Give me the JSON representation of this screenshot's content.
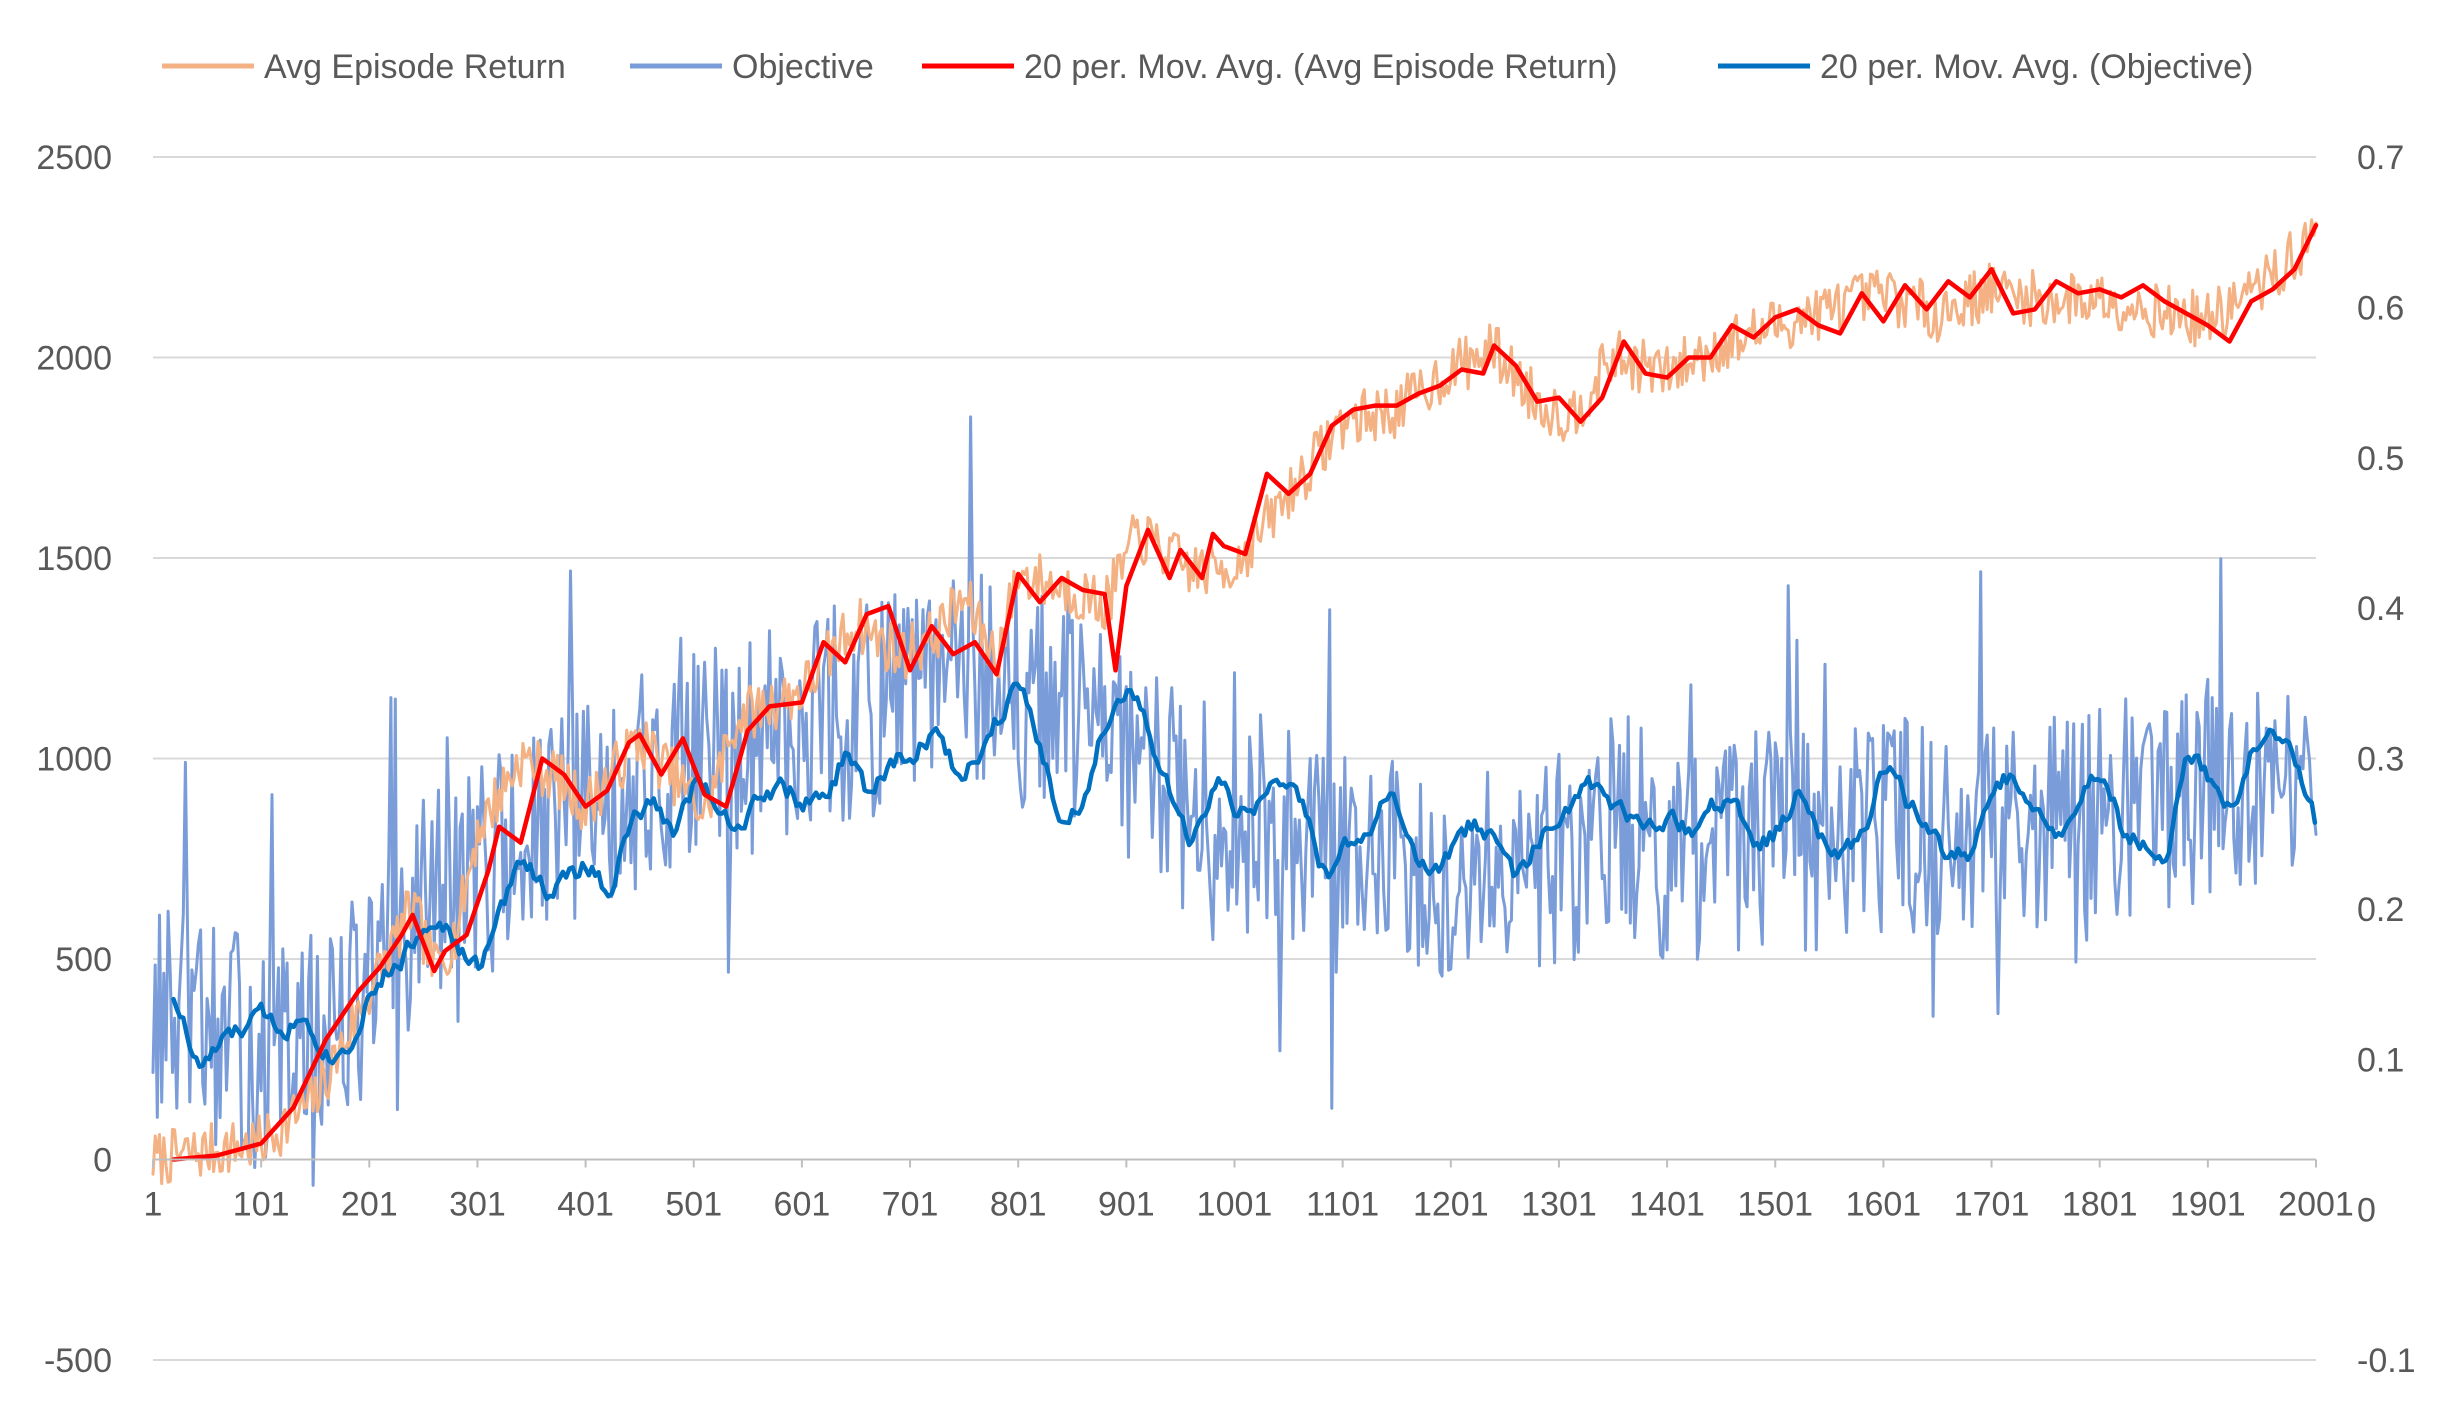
{
  "chart_data": {
    "type": "line",
    "title": "",
    "xlabel": "",
    "ylabel": "",
    "x_range": [
      1,
      2001
    ],
    "x_tick_labels": [
      "1",
      "101",
      "201",
      "301",
      "401",
      "501",
      "601",
      "701",
      "801",
      "901",
      "1001",
      "1101",
      "1201",
      "1301",
      "1401",
      "1501",
      "1601",
      "1701",
      "1801",
      "1901",
      "2001"
    ],
    "y_left": {
      "range": [
        -500,
        2500
      ],
      "ticks": [
        "-500",
        "0",
        "500",
        "1000",
        "1500",
        "2000",
        "2500"
      ]
    },
    "y_right": {
      "range": [
        -0.1,
        0.7
      ],
      "ticks": [
        "-0.1",
        "0",
        "0.1",
        "0.2",
        "0.3",
        "0.4",
        "0.5",
        "0.6",
        "0.7"
      ]
    },
    "grid": true,
    "legend_position": "top",
    "series": [
      {
        "name": "Avg Episode Return",
        "axis": "left",
        "color": "#F4B183",
        "noise_amp": 70,
        "x": [
          1,
          50,
          101,
          151,
          201,
          241,
          261,
          281,
          301,
          341,
          371,
          401,
          451,
          491,
          511,
          541,
          601,
          651,
          691,
          721,
          751,
          781,
          801,
          851,
          881,
          911,
          961,
          1001,
          1051,
          1101,
          1151,
          1201,
          1241,
          1281,
          1311,
          1351,
          1401,
          1451,
          1501,
          1551,
          1601,
          1651,
          1701,
          1751,
          1801,
          1851,
          1901,
          1951,
          2001
        ],
        "values": [
          0,
          20,
          40,
          150,
          420,
          630,
          480,
          560,
          820,
          1000,
          960,
          880,
          1050,
          930,
          860,
          1100,
          1170,
          1340,
          1260,
          1300,
          1400,
          1250,
          1460,
          1420,
          1380,
          1560,
          1470,
          1480,
          1660,
          1840,
          1870,
          1970,
          2020,
          1890,
          1850,
          2000,
          1960,
          2030,
          2080,
          2120,
          2160,
          2110,
          2170,
          2140,
          2150,
          2120,
          2090,
          2180,
          2300
        ]
      },
      {
        "name": "Objective",
        "axis": "right",
        "color": "#7A9DD9",
        "noise_amp": 0.075,
        "x": [
          1,
          50,
          101,
          151,
          201,
          251,
          301,
          351,
          401,
          451,
          501,
          551,
          601,
          651,
          701,
          751,
          801,
          851,
          901,
          951,
          1001,
          1051,
          1101,
          1151,
          1201,
          1251,
          1301,
          1351,
          1401,
          1451,
          1501,
          1551,
          1601,
          1651,
          1701,
          1751,
          1801,
          1851,
          1901,
          1951,
          2001
        ],
        "values": [
          0.13,
          0.12,
          0.1,
          0.11,
          0.15,
          0.2,
          0.23,
          0.24,
          0.27,
          0.28,
          0.3,
          0.31,
          0.33,
          0.33,
          0.34,
          0.36,
          0.34,
          0.33,
          0.3,
          0.27,
          0.26,
          0.25,
          0.23,
          0.23,
          0.23,
          0.24,
          0.23,
          0.26,
          0.24,
          0.24,
          0.25,
          0.24,
          0.26,
          0.25,
          0.27,
          0.26,
          0.26,
          0.26,
          0.28,
          0.28,
          0.26
        ]
      },
      {
        "name": "20 per. Mov. Avg. (Avg Episode Return)",
        "axis": "left",
        "color": "#FF0000",
        "noise_amp": 0,
        "x": [
          20,
          60,
          101,
          131,
          161,
          191,
          211,
          231,
          241,
          251,
          261,
          271,
          291,
          311,
          321,
          341,
          361,
          381,
          401,
          421,
          441,
          451,
          471,
          491,
          511,
          531,
          551,
          571,
          601,
          621,
          641,
          661,
          681,
          701,
          721,
          741,
          761,
          781,
          801,
          821,
          841,
          861,
          881,
          891,
          901,
          921,
          941,
          951,
          971,
          981,
          991,
          1011,
          1031,
          1051,
          1071,
          1091,
          1111,
          1131,
          1151,
          1171,
          1191,
          1211,
          1231,
          1241,
          1261,
          1281,
          1301,
          1321,
          1341,
          1361,
          1381,
          1401,
          1421,
          1441,
          1461,
          1481,
          1501,
          1521,
          1541,
          1561,
          1581,
          1601,
          1621,
          1641,
          1661,
          1681,
          1701,
          1721,
          1741,
          1761,
          1781,
          1801,
          1821,
          1841,
          1861,
          1881,
          1901,
          1921,
          1941,
          1961,
          1981,
          2001
        ],
        "values": [
          0,
          10,
          40,
          130,
          300,
          420,
          480,
          560,
          610,
          540,
          470,
          520,
          560,
          720,
          830,
          790,
          1000,
          960,
          880,
          920,
          1040,
          1060,
          960,
          1050,
          910,
          880,
          1070,
          1130,
          1140,
          1290,
          1240,
          1360,
          1380,
          1220,
          1330,
          1260,
          1290,
          1210,
          1460,
          1390,
          1450,
          1420,
          1410,
          1220,
          1430,
          1570,
          1450,
          1520,
          1450,
          1560,
          1530,
          1510,
          1710,
          1660,
          1710,
          1830,
          1870,
          1880,
          1880,
          1910,
          1930,
          1970,
          1960,
          2030,
          1980,
          1890,
          1900,
          1840,
          1900,
          2040,
          1960,
          1950,
          2000,
          2000,
          2080,
          2050,
          2100,
          2120,
          2080,
          2060,
          2160,
          2090,
          2180,
          2120,
          2190,
          2150,
          2220,
          2110,
          2120,
          2190,
          2160,
          2170,
          2150,
          2180,
          2140,
          2110,
          2080,
          2040,
          2140,
          2170,
          2220,
          2330
        ]
      },
      {
        "name": "20 per. Mov. Avg. (Objective)",
        "axis": "right",
        "color": "#0070C0",
        "noise_amp": 0.012,
        "x": [
          20,
          40,
          60,
          101,
          121,
          141,
          161,
          181,
          201,
          221,
          241,
          261,
          281,
          301,
          321,
          341,
          361,
          381,
          401,
          421,
          441,
          461,
          481,
          501,
          521,
          541,
          561,
          581,
          601,
          621,
          641,
          661,
          681,
          701,
          721,
          741,
          761,
          781,
          801,
          821,
          841,
          861,
          881,
          901,
          921,
          941,
          961,
          981,
          1001,
          1021,
          1041,
          1061,
          1081,
          1101,
          1121,
          1141,
          1161,
          1181,
          1201,
          1221,
          1241,
          1261,
          1281,
          1301,
          1321,
          1341,
          1361,
          1381,
          1401,
          1421,
          1441,
          1461,
          1481,
          1501,
          1521,
          1541,
          1561,
          1581,
          1601,
          1621,
          1641,
          1661,
          1681,
          1701,
          1721,
          1741,
          1761,
          1781,
          1801,
          1821,
          1841,
          1861,
          1881,
          1901,
          1921,
          1941,
          1961,
          1981,
          2001
        ],
        "values": [
          0.14,
          0.09,
          0.11,
          0.13,
          0.12,
          0.13,
          0.1,
          0.11,
          0.15,
          0.16,
          0.18,
          0.2,
          0.17,
          0.16,
          0.2,
          0.24,
          0.21,
          0.22,
          0.23,
          0.21,
          0.26,
          0.27,
          0.25,
          0.29,
          0.27,
          0.25,
          0.28,
          0.28,
          0.27,
          0.27,
          0.31,
          0.27,
          0.3,
          0.3,
          0.32,
          0.29,
          0.3,
          0.33,
          0.36,
          0.3,
          0.25,
          0.28,
          0.33,
          0.35,
          0.31,
          0.27,
          0.24,
          0.29,
          0.26,
          0.27,
          0.29,
          0.27,
          0.22,
          0.24,
          0.25,
          0.28,
          0.24,
          0.22,
          0.24,
          0.26,
          0.24,
          0.22,
          0.25,
          0.25,
          0.29,
          0.27,
          0.26,
          0.25,
          0.26,
          0.25,
          0.27,
          0.27,
          0.24,
          0.25,
          0.28,
          0.25,
          0.24,
          0.25,
          0.3,
          0.27,
          0.25,
          0.23,
          0.24,
          0.28,
          0.29,
          0.26,
          0.25,
          0.28,
          0.29,
          0.25,
          0.24,
          0.23,
          0.31,
          0.28,
          0.26,
          0.31,
          0.32,
          0.3,
          0.25
        ]
      }
    ]
  }
}
